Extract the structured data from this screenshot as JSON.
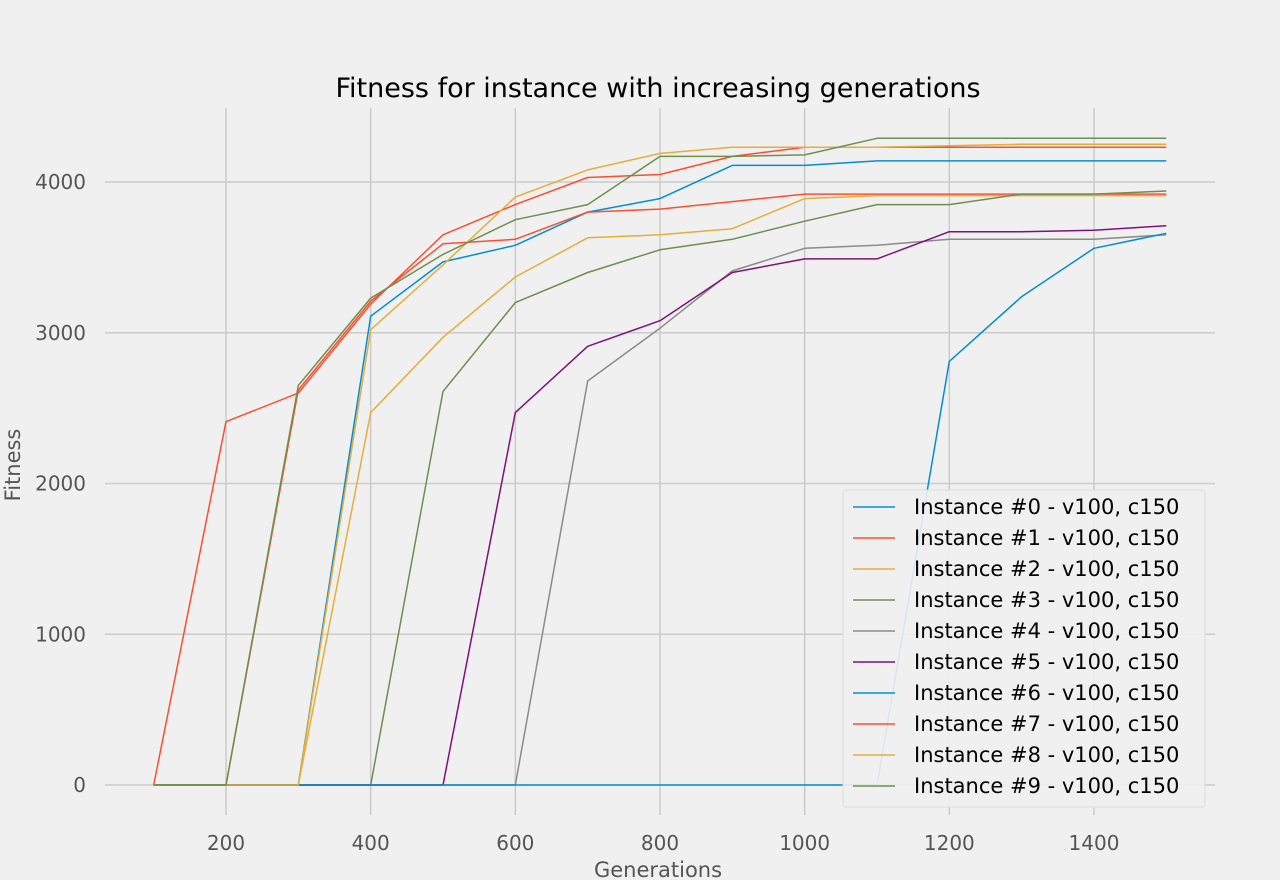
{
  "chart_data": {
    "type": "line",
    "title": "Fitness for instance with increasing generations",
    "xlabel": "Generations",
    "ylabel": "Fitness",
    "xlim": [
      0,
      1567
    ],
    "ylim": [
      -200,
      4500
    ],
    "x_ticks": [
      200,
      400,
      600,
      800,
      1000,
      1200,
      1400
    ],
    "y_ticks": [
      0,
      1000,
      2000,
      3000,
      4000
    ],
    "grid": true,
    "legend_position": "lower-right",
    "x": [
      100,
      200,
      300,
      400,
      500,
      600,
      700,
      800,
      900,
      1000,
      1100,
      1200,
      1300,
      1400,
      1500
    ],
    "series": [
      {
        "name": "Instance #0 - v100, c150",
        "color": "#008fd5",
        "values": [
          0,
          0,
          0,
          3110,
          3470,
          3580,
          3800,
          3890,
          4110,
          4110,
          4140,
          4140,
          4140,
          4140,
          4140
        ]
      },
      {
        "name": "Instance #1 - v100, c150",
        "color": "#fc4f30",
        "values": [
          0,
          0,
          2620,
          3210,
          3590,
          3620,
          3800,
          3820,
          3870,
          3920,
          3920,
          3920,
          3920,
          3920,
          3920
        ]
      },
      {
        "name": "Instance #2 - v100, c150",
        "color": "#e5ae38",
        "values": [
          0,
          0,
          0,
          2470,
          2970,
          3370,
          3630,
          3650,
          3690,
          3890,
          3910,
          3910,
          3910,
          3910,
          3910
        ]
      },
      {
        "name": "Instance #3 - v100, c150",
        "color": "#6d904f",
        "values": [
          0,
          0,
          0,
          0,
          2610,
          3200,
          3400,
          3550,
          3620,
          3740,
          3850,
          3850,
          3920,
          3920,
          3940
        ]
      },
      {
        "name": "Instance #4 - v100, c150",
        "color": "#8b8b8b",
        "values": [
          0,
          0,
          0,
          0,
          0,
          0,
          2680,
          3030,
          3410,
          3560,
          3580,
          3620,
          3620,
          3620,
          3650
        ]
      },
      {
        "name": "Instance #5 - v100, c150",
        "color": "#810f7c",
        "values": [
          0,
          0,
          0,
          0,
          0,
          2470,
          2910,
          3080,
          3400,
          3490,
          3490,
          3670,
          3670,
          3680,
          3710
        ]
      },
      {
        "name": "Instance #6 - v100, c150",
        "color": "#008fd5",
        "values": [
          0,
          0,
          0,
          0,
          0,
          0,
          0,
          0,
          0,
          0,
          0,
          2810,
          3240,
          3560,
          3660
        ]
      },
      {
        "name": "Instance #7 - v100, c150",
        "color": "#fc4f30",
        "values": [
          0,
          2410,
          2600,
          3190,
          3650,
          3850,
          4030,
          4050,
          4170,
          4230,
          4230,
          4230,
          4230,
          4230,
          4230
        ]
      },
      {
        "name": "Instance #8 - v100, c150",
        "color": "#e5ae38",
        "values": [
          0,
          0,
          0,
          3020,
          3450,
          3900,
          4080,
          4190,
          4230,
          4230,
          4230,
          4240,
          4250,
          4250,
          4250
        ]
      },
      {
        "name": "Instance #9 - v100, c150",
        "color": "#6d904f",
        "values": [
          0,
          0,
          2650,
          3230,
          3520,
          3750,
          3850,
          4170,
          4170,
          4180,
          4290,
          4290,
          4290,
          4290,
          4290
        ]
      }
    ]
  }
}
